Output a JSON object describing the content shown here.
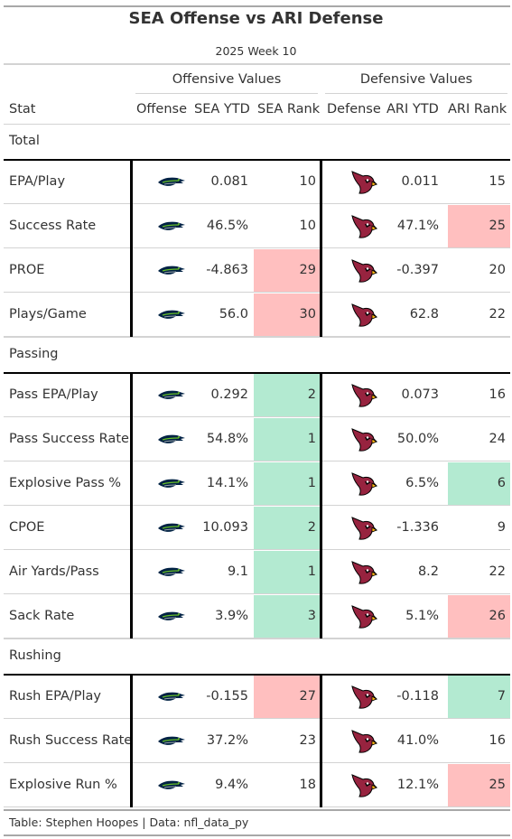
{
  "title": "SEA Offense vs ARI Defense",
  "subtitle": "2025 Week 10",
  "spanners": {
    "offense": "Offensive Values",
    "defense": "Defensive Values"
  },
  "columns": [
    "Stat",
    "Offense",
    "SEA YTD",
    "SEA Rank",
    "Defense",
    "ARI YTD",
    "ARI Rank"
  ],
  "colors": {
    "good": "#b3ead1",
    "bad": "#ffbfbf",
    "seahawks_navy": "#002244",
    "seahawks_green": "#69be28",
    "cardinals_red": "#97233f"
  },
  "icons": {
    "offense": "seahawks-logo-icon",
    "defense": "cardinals-logo-icon"
  },
  "groups": [
    {
      "label": "Total",
      "rows": [
        {
          "stat": "EPA/Play",
          "sea_ytd": "0.081",
          "sea_rank": "10",
          "sea_shade": "",
          "ari_ytd": "0.011",
          "ari_rank": "15",
          "ari_shade": ""
        },
        {
          "stat": "Success Rate",
          "sea_ytd": "46.5%",
          "sea_rank": "10",
          "sea_shade": "",
          "ari_ytd": "47.1%",
          "ari_rank": "25",
          "ari_shade": "bad"
        },
        {
          "stat": "PROE",
          "sea_ytd": "-4.863",
          "sea_rank": "29",
          "sea_shade": "bad",
          "ari_ytd": "-0.397",
          "ari_rank": "20",
          "ari_shade": ""
        },
        {
          "stat": "Plays/Game",
          "sea_ytd": "56.0",
          "sea_rank": "30",
          "sea_shade": "bad",
          "ari_ytd": "62.8",
          "ari_rank": "22",
          "ari_shade": ""
        }
      ]
    },
    {
      "label": "Passing",
      "rows": [
        {
          "stat": "Pass EPA/Play",
          "sea_ytd": "0.292",
          "sea_rank": "2",
          "sea_shade": "good",
          "ari_ytd": "0.073",
          "ari_rank": "16",
          "ari_shade": ""
        },
        {
          "stat": "Pass Success Rate",
          "sea_ytd": "54.8%",
          "sea_rank": "1",
          "sea_shade": "good",
          "ari_ytd": "50.0%",
          "ari_rank": "24",
          "ari_shade": ""
        },
        {
          "stat": "Explosive Pass %",
          "sea_ytd": "14.1%",
          "sea_rank": "1",
          "sea_shade": "good",
          "ari_ytd": "6.5%",
          "ari_rank": "6",
          "ari_shade": "good"
        },
        {
          "stat": "CPOE",
          "sea_ytd": "10.093",
          "sea_rank": "2",
          "sea_shade": "good",
          "ari_ytd": "-1.336",
          "ari_rank": "9",
          "ari_shade": ""
        },
        {
          "stat": "Air Yards/Pass",
          "sea_ytd": "9.1",
          "sea_rank": "1",
          "sea_shade": "good",
          "ari_ytd": "8.2",
          "ari_rank": "22",
          "ari_shade": ""
        },
        {
          "stat": "Sack Rate",
          "sea_ytd": "3.9%",
          "sea_rank": "3",
          "sea_shade": "good",
          "ari_ytd": "5.1%",
          "ari_rank": "26",
          "ari_shade": "bad"
        }
      ]
    },
    {
      "label": "Rushing",
      "rows": [
        {
          "stat": "Rush EPA/Play",
          "sea_ytd": "-0.155",
          "sea_rank": "27",
          "sea_shade": "bad",
          "ari_ytd": "-0.118",
          "ari_rank": "7",
          "ari_shade": "good"
        },
        {
          "stat": "Rush Success Rate",
          "sea_ytd": "37.2%",
          "sea_rank": "23",
          "sea_shade": "",
          "ari_ytd": "41.0%",
          "ari_rank": "16",
          "ari_shade": ""
        },
        {
          "stat": "Explosive Run %",
          "sea_ytd": "9.4%",
          "sea_rank": "18",
          "sea_shade": "",
          "ari_ytd": "12.1%",
          "ari_rank": "25",
          "ari_shade": "bad"
        }
      ]
    }
  ],
  "footer": "Table: Stephen Hoopes | Data: nfl_data_py"
}
